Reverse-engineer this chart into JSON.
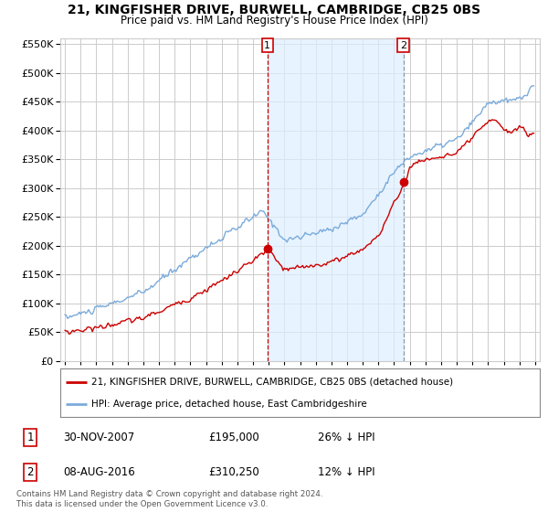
{
  "title": "21, KINGFISHER DRIVE, BURWELL, CAMBRIDGE, CB25 0BS",
  "subtitle": "Price paid vs. HM Land Registry's House Price Index (HPI)",
  "legend_line1": "21, KINGFISHER DRIVE, BURWELL, CAMBRIDGE, CB25 0BS (detached house)",
  "legend_line2": "HPI: Average price, detached house, East Cambridgeshire",
  "annotation1_label": "1",
  "annotation1_date": "30-NOV-2007",
  "annotation1_price": "£195,000",
  "annotation1_hpi": "26% ↓ HPI",
  "annotation1_year": 2007.92,
  "annotation1_value": 195000,
  "annotation2_label": "2",
  "annotation2_date": "08-AUG-2016",
  "annotation2_price": "£310,250",
  "annotation2_hpi": "12% ↓ HPI",
  "annotation2_year": 2016.6,
  "annotation2_value": 310250,
  "footer": "Contains HM Land Registry data © Crown copyright and database right 2024.\nThis data is licensed under the Open Government Licence v3.0.",
  "ylim": [
    0,
    560000
  ],
  "yticks": [
    0,
    50000,
    100000,
    150000,
    200000,
    250000,
    300000,
    350000,
    400000,
    450000,
    500000,
    550000
  ],
  "xlim_start": 1994.7,
  "xlim_end": 2025.3,
  "property_color": "#cc0000",
  "hpi_color": "#7aabdb",
  "vline1_color": "#cc0000",
  "vline2_color": "#8899aa",
  "shade_color": "#ddeeff",
  "background_color": "#ffffff",
  "grid_color": "#cccccc",
  "dot_color": "#cc0000"
}
